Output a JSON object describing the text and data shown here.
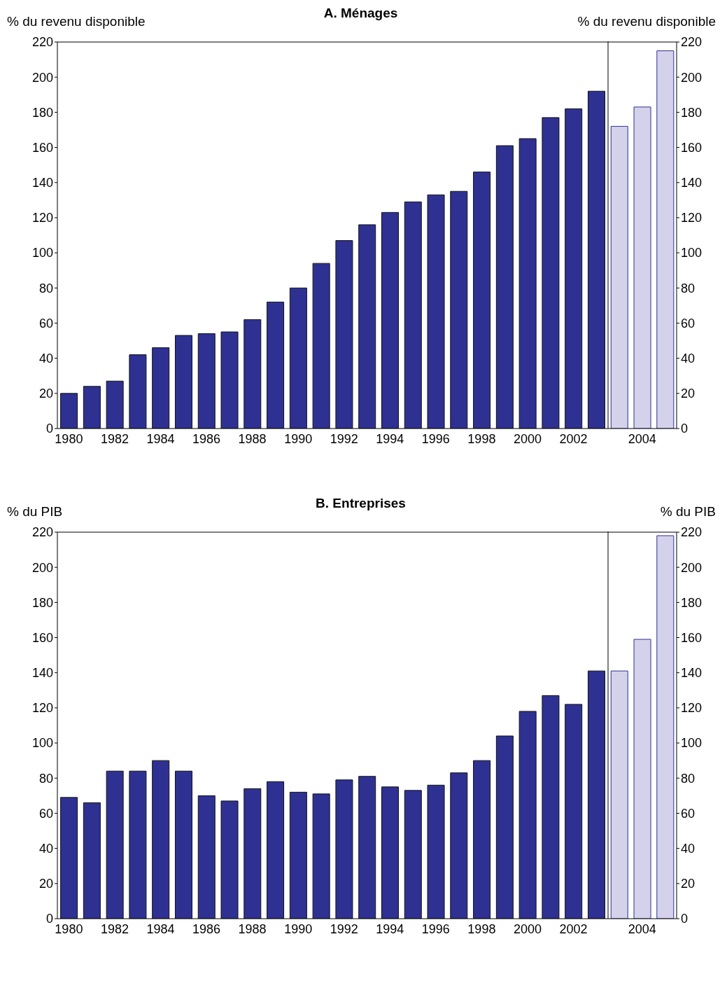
{
  "chart_data": [
    {
      "type": "bar",
      "title": "A. Ménages",
      "ylabel": "% du revenu disponible",
      "y2label": "% du revenu disponible",
      "categories": [
        "1980",
        null,
        "1982",
        null,
        "1984",
        null,
        "1986",
        null,
        "1988",
        null,
        "1990",
        null,
        "1992",
        null,
        "1994",
        null,
        "1996",
        null,
        "1998",
        null,
        "2000",
        null,
        "2002",
        null,
        null,
        "2004",
        null
      ],
      "values": [
        20,
        24,
        27,
        42,
        46,
        53,
        54,
        55,
        62,
        72,
        80,
        94,
        107,
        116,
        123,
        129,
        133,
        135,
        146,
        161,
        165,
        177,
        182,
        192,
        172,
        183,
        215
      ],
      "colors": [
        "#2e3192",
        "#2e3192",
        "#2e3192",
        "#2e3192",
        "#2e3192",
        "#2e3192",
        "#2e3192",
        "#2e3192",
        "#2e3192",
        "#2e3192",
        "#2e3192",
        "#2e3192",
        "#2e3192",
        "#2e3192",
        "#2e3192",
        "#2e3192",
        "#2e3192",
        "#2e3192",
        "#2e3192",
        "#2e3192",
        "#2e3192",
        "#2e3192",
        "#2e3192",
        "#2e3192",
        "#d4d2ea",
        "#d4d2ea",
        "#d4d2ea"
      ],
      "ylim": [
        0,
        220
      ],
      "yticks": [
        0,
        20,
        40,
        60,
        80,
        100,
        120,
        140,
        160,
        180,
        200,
        220
      ],
      "y2lim": [
        0,
        220
      ],
      "y2ticks": [
        0,
        20,
        40,
        60,
        80,
        100,
        120,
        140,
        160,
        180,
        200,
        220
      ],
      "grid": false,
      "legend": false
    },
    {
      "type": "bar",
      "title": "B.  Entreprises",
      "ylabel": "% du PIB",
      "y2label": "% du PIB",
      "categories": [
        "1980",
        null,
        "1982",
        null,
        "1984",
        null,
        "1986",
        null,
        "1988",
        null,
        "1990",
        null,
        "1992",
        null,
        "1994",
        null,
        "1996",
        null,
        "1998",
        null,
        "2000",
        null,
        "2002",
        null,
        null,
        "2004",
        null
      ],
      "values": [
        69,
        66,
        84,
        84,
        90,
        84,
        70,
        67,
        74,
        78,
        72,
        71,
        79,
        81,
        75,
        73,
        76,
        83,
        90,
        104,
        118,
        127,
        122,
        141,
        141,
        159,
        218
      ],
      "colors": [
        "#2e3192",
        "#2e3192",
        "#2e3192",
        "#2e3192",
        "#2e3192",
        "#2e3192",
        "#2e3192",
        "#2e3192",
        "#2e3192",
        "#2e3192",
        "#2e3192",
        "#2e3192",
        "#2e3192",
        "#2e3192",
        "#2e3192",
        "#2e3192",
        "#2e3192",
        "#2e3192",
        "#2e3192",
        "#2e3192",
        "#2e3192",
        "#2e3192",
        "#2e3192",
        "#2e3192",
        "#d4d2ea",
        "#d4d2ea",
        "#d4d2ea"
      ],
      "ylim": [
        0,
        220
      ],
      "yticks": [
        0,
        20,
        40,
        60,
        80,
        100,
        120,
        140,
        160,
        180,
        200,
        220
      ],
      "y2lim": [
        0,
        220
      ],
      "y2ticks": [
        0,
        20,
        40,
        60,
        80,
        100,
        120,
        140,
        160,
        180,
        200,
        220
      ],
      "grid": false,
      "legend": false
    }
  ]
}
